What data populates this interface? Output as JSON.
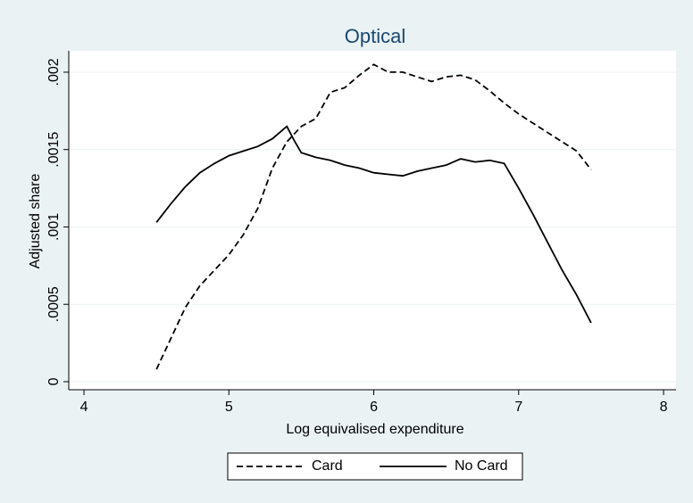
{
  "chart_data": {
    "type": "line",
    "title": "Optical",
    "x_label": "Log equivalised expenditure",
    "y_label": "Adjusted share",
    "x": [
      4.5,
      4.6,
      4.7,
      4.8,
      4.9,
      5.0,
      5.1,
      5.2,
      5.3,
      5.4,
      5.45,
      5.5,
      5.6,
      5.7,
      5.8,
      5.9,
      6.0,
      6.1,
      6.2,
      6.3,
      6.4,
      6.5,
      6.6,
      6.7,
      6.8,
      6.9,
      7.0,
      7.1,
      7.2,
      7.3,
      7.4,
      7.5
    ],
    "series": [
      {
        "name": "Card",
        "color": "#000000",
        "dash": true,
        "values": [
          8e-05,
          0.00028,
          0.00048,
          0.00062,
          0.00072,
          0.00082,
          0.00095,
          0.00112,
          0.00138,
          0.00155,
          0.0016,
          0.00165,
          0.0017,
          0.00187,
          0.0019,
          0.00198,
          0.00205,
          0.002,
          0.002,
          0.00197,
          0.00194,
          0.00197,
          0.00198,
          0.00195,
          0.00188,
          0.0018,
          0.00173,
          0.00167,
          0.00161,
          0.00155,
          0.00149,
          0.00137
        ]
      },
      {
        "name": "No Card",
        "color": "#000000",
        "dash": false,
        "values": [
          0.00103,
          0.00115,
          0.00126,
          0.00135,
          0.00141,
          0.00146,
          0.00149,
          0.00152,
          0.00157,
          0.00165,
          0.00156,
          0.00148,
          0.00145,
          0.00143,
          0.0014,
          0.00138,
          0.00135,
          0.00134,
          0.00133,
          0.00136,
          0.00138,
          0.0014,
          0.00144,
          0.00142,
          0.00143,
          0.00141,
          0.00125,
          0.00108,
          0.0009,
          0.00072,
          0.00056,
          0.00038
        ]
      }
    ],
    "xlim": [
      3.895,
      8.086
    ],
    "ylim": [
      -5.2e-05,
      0.002138
    ],
    "xticks": [
      4,
      5,
      6,
      7,
      8
    ],
    "yticks": [
      0,
      {
        "value": 0.0005,
        "label": ".0005"
      },
      {
        "value": 0.001,
        "label": ".001"
      },
      {
        "value": 0.0015,
        "label": ".0015"
      },
      {
        "value": 0.002,
        "label": ".002"
      }
    ],
    "grid": true,
    "legend": "bottom"
  }
}
